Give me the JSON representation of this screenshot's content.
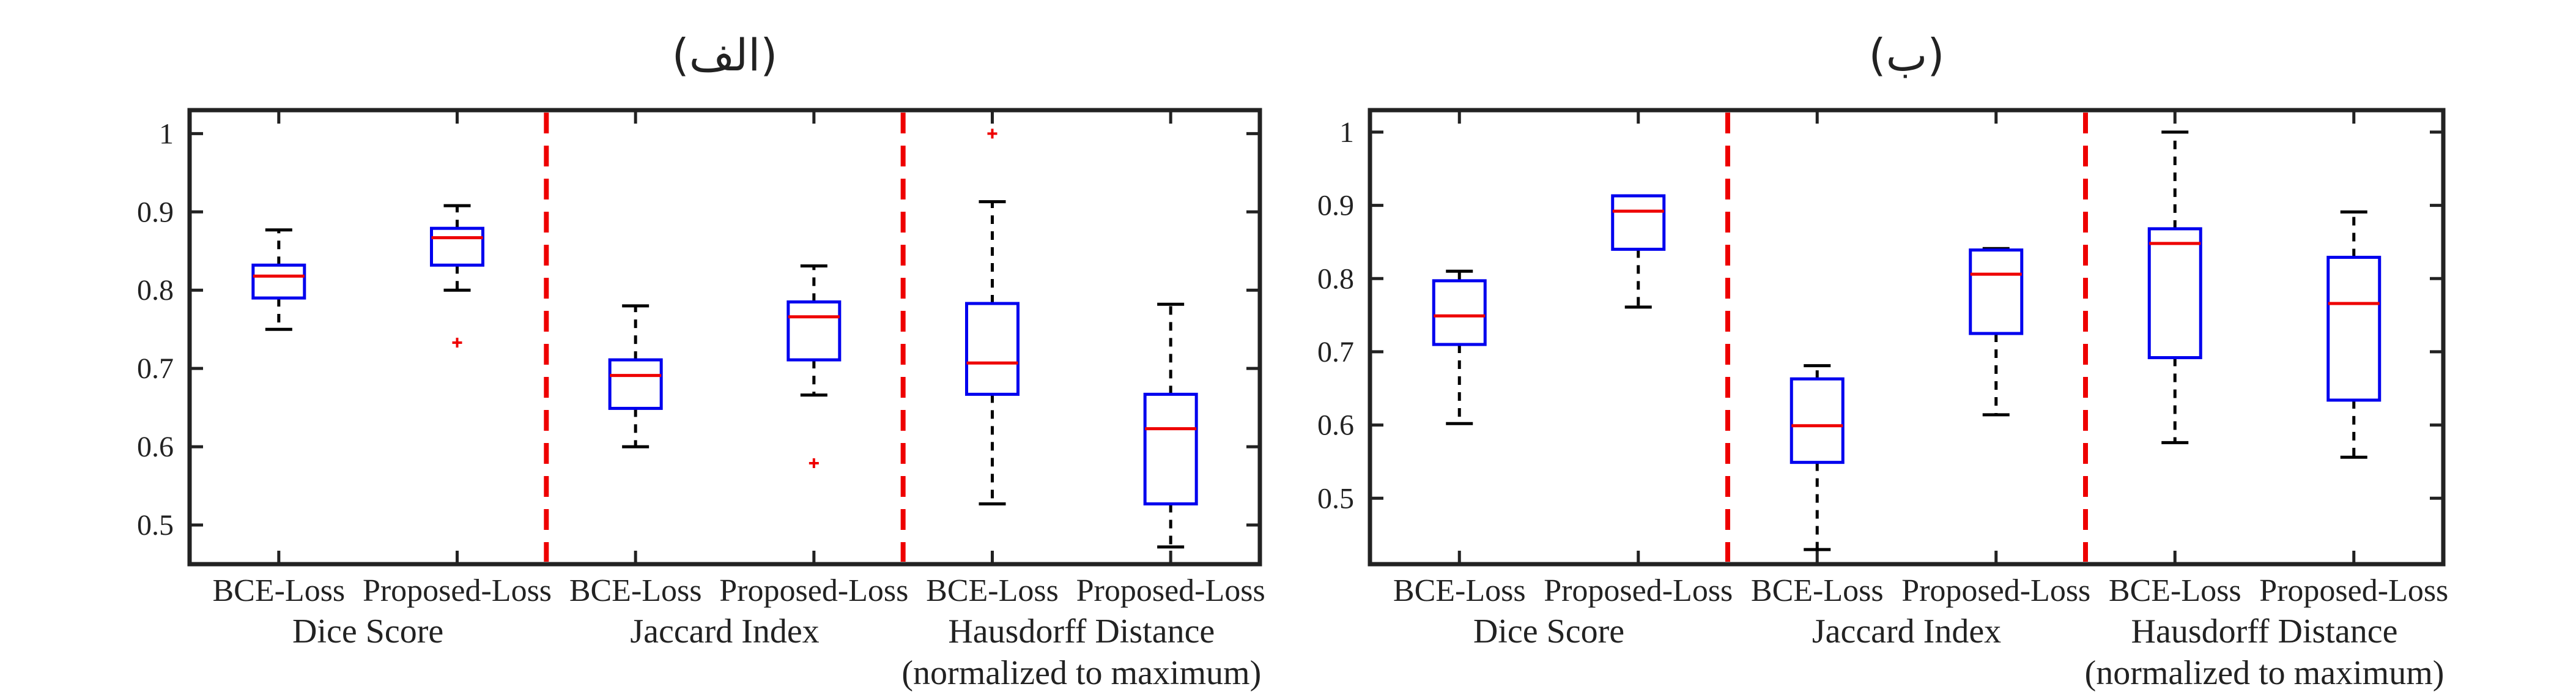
{
  "chart_data": [
    {
      "type": "box",
      "title": "(الف)",
      "ylim": [
        0.45,
        1.03
      ],
      "yticks": [
        "0.5",
        "0.6",
        "0.7",
        "0.8",
        "0.9",
        "1"
      ],
      "ytick_values": [
        0.5,
        0.6,
        0.7,
        0.8,
        0.9,
        1.0
      ],
      "groups": [
        {
          "label": [
            "Dice Score"
          ]
        },
        {
          "label": [
            "Jaccard Index"
          ]
        },
        {
          "label": [
            "Hausdorff Distance",
            "(normalized to maximum)"
          ]
        }
      ],
      "categories": [
        "BCE-Loss",
        "Proposed-Loss",
        "BCE-Loss",
        "Proposed-Loss",
        "BCE-Loss",
        "Proposed-Loss"
      ],
      "boxes": [
        {
          "whisker_low": 0.75,
          "q1": 0.79,
          "median": 0.818,
          "q3": 0.832,
          "whisker_high": 0.877,
          "outliers": []
        },
        {
          "whisker_low": 0.8,
          "q1": 0.832,
          "median": 0.867,
          "q3": 0.879,
          "whisker_high": 0.908,
          "outliers": [
            0.733
          ]
        },
        {
          "whisker_low": 0.6,
          "q1": 0.649,
          "median": 0.691,
          "q3": 0.711,
          "whisker_high": 0.78,
          "outliers": []
        },
        {
          "whisker_low": 0.666,
          "q1": 0.711,
          "median": 0.766,
          "q3": 0.785,
          "whisker_high": 0.831,
          "outliers": [
            0.579
          ]
        },
        {
          "whisker_low": 0.527,
          "q1": 0.667,
          "median": 0.707,
          "q3": 0.783,
          "whisker_high": 0.913,
          "outliers": [
            1.0
          ]
        },
        {
          "whisker_low": 0.472,
          "q1": 0.527,
          "median": 0.623,
          "q3": 0.667,
          "whisker_high": 0.782,
          "outliers": []
        }
      ]
    },
    {
      "type": "box",
      "title": "(ب)",
      "ylim": [
        0.41,
        1.03
      ],
      "yticks": [
        "0.5",
        "0.6",
        "0.7",
        "0.8",
        "0.9",
        "1"
      ],
      "ytick_values": [
        0.5,
        0.6,
        0.7,
        0.8,
        0.9,
        1.0
      ],
      "groups": [
        {
          "label": [
            "Dice Score"
          ]
        },
        {
          "label": [
            "Jaccard Index"
          ]
        },
        {
          "label": [
            "Hausdorff Distance",
            "(normalized to maximum)"
          ]
        }
      ],
      "categories": [
        "BCE-Loss",
        "Proposed-Loss",
        "BCE-Loss",
        "Proposed-Loss",
        "BCE-Loss",
        "Proposed-Loss"
      ],
      "boxes": [
        {
          "whisker_low": 0.602,
          "q1": 0.71,
          "median": 0.749,
          "q3": 0.797,
          "whisker_high": 0.81,
          "outliers": []
        },
        {
          "whisker_low": 0.761,
          "q1": 0.84,
          "median": 0.892,
          "q3": 0.913,
          "whisker_high": 0.913,
          "outliers": []
        },
        {
          "whisker_low": 0.43,
          "q1": 0.549,
          "median": 0.599,
          "q3": 0.663,
          "whisker_high": 0.681,
          "outliers": []
        },
        {
          "whisker_low": 0.614,
          "q1": 0.725,
          "median": 0.806,
          "q3": 0.839,
          "whisker_high": 0.841,
          "outliers": []
        },
        {
          "whisker_low": 0.576,
          "q1": 0.692,
          "median": 0.848,
          "q3": 0.868,
          "whisker_high": 1.0,
          "outliers": []
        },
        {
          "whisker_low": 0.556,
          "q1": 0.634,
          "median": 0.766,
          "q3": 0.829,
          "whisker_high": 0.891,
          "outliers": []
        }
      ]
    }
  ]
}
